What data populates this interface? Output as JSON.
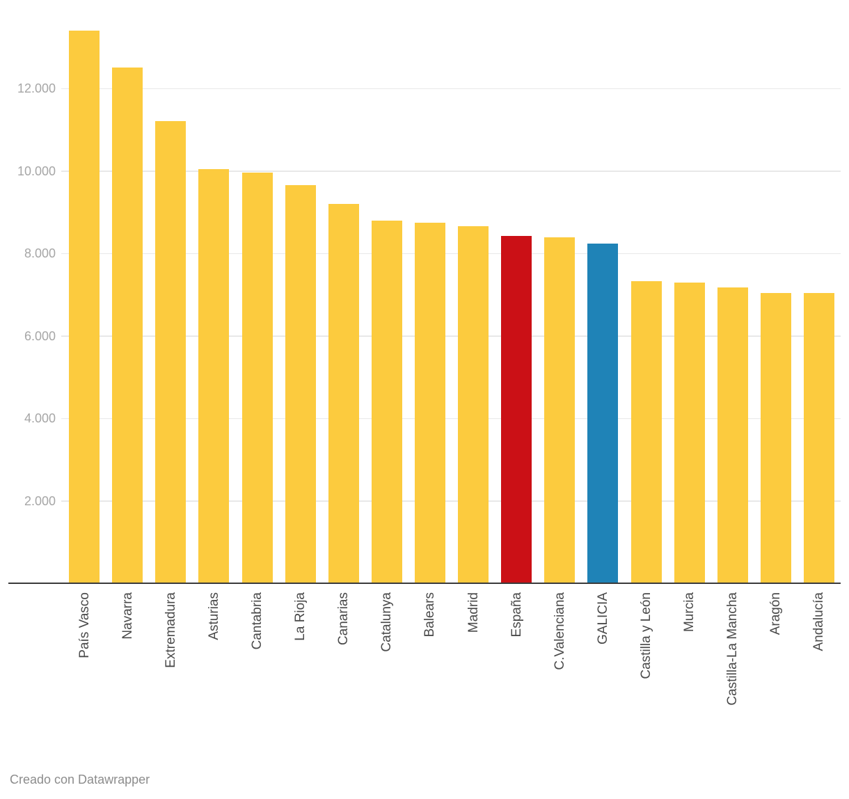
{
  "footer": {
    "credit": "Creado con Datawrapper"
  },
  "chart_data": {
    "type": "bar",
    "title": "",
    "xlabel": "",
    "ylabel": "",
    "grid": true,
    "legend": "none",
    "categories": [
      "País Vasco",
      "Navarra",
      "Extremadura",
      "Asturias",
      "Cantabria",
      "La Rioja",
      "Canarias",
      "Catalunya",
      "Balears",
      "Madrid",
      "España",
      "C.Valenciana",
      "GALICIA",
      "Castilla y León",
      "Murcia",
      "Castilla-La Mancha",
      "Aragón",
      "Andalucía"
    ],
    "values": [
      13400,
      12500,
      11200,
      10050,
      9950,
      9650,
      9200,
      8800,
      8750,
      8650,
      8420,
      8380,
      8230,
      7320,
      7290,
      7180,
      7030,
      7030
    ],
    "default_color": "#FCCB3E",
    "bar_colors": [
      "#FCCB3E",
      "#FCCB3E",
      "#FCCB3E",
      "#FCCB3E",
      "#FCCB3E",
      "#FCCB3E",
      "#FCCB3E",
      "#FCCB3E",
      "#FCCB3E",
      "#FCCB3E",
      "#CB1016",
      "#FCCB3E",
      "#1F83B7",
      "#FCCB3E",
      "#FCCB3E",
      "#FCCB3E",
      "#FCCB3E",
      "#FCCB3E"
    ],
    "highlighted": {
      "España": "#CB1016",
      "GALICIA": "#1F83B7"
    },
    "ylim": [
      0,
      14000
    ],
    "yticks": [
      2000,
      4000,
      6000,
      8000,
      10000,
      12000
    ],
    "ytick_labels": [
      "2.000",
      "4.000",
      "6.000",
      "8.000",
      "10.000",
      "12.000"
    ]
  }
}
